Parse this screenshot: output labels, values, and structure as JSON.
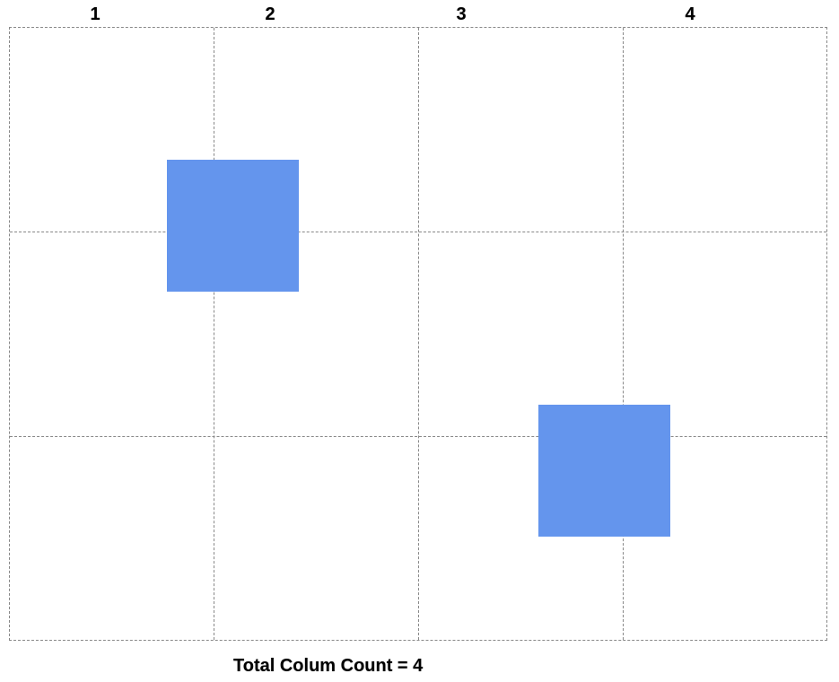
{
  "columns": {
    "labels": [
      "1",
      "2",
      "3",
      "4"
    ]
  },
  "grid": {
    "rows": 3,
    "columns": 4,
    "line_style": "dashed",
    "line_color": "#888888"
  },
  "blocks": [
    {
      "name": "block-1",
      "color": "#6495ed"
    },
    {
      "name": "block-2",
      "color": "#6495ed"
    }
  ],
  "caption": {
    "text": "Total Colum Count = 4"
  }
}
